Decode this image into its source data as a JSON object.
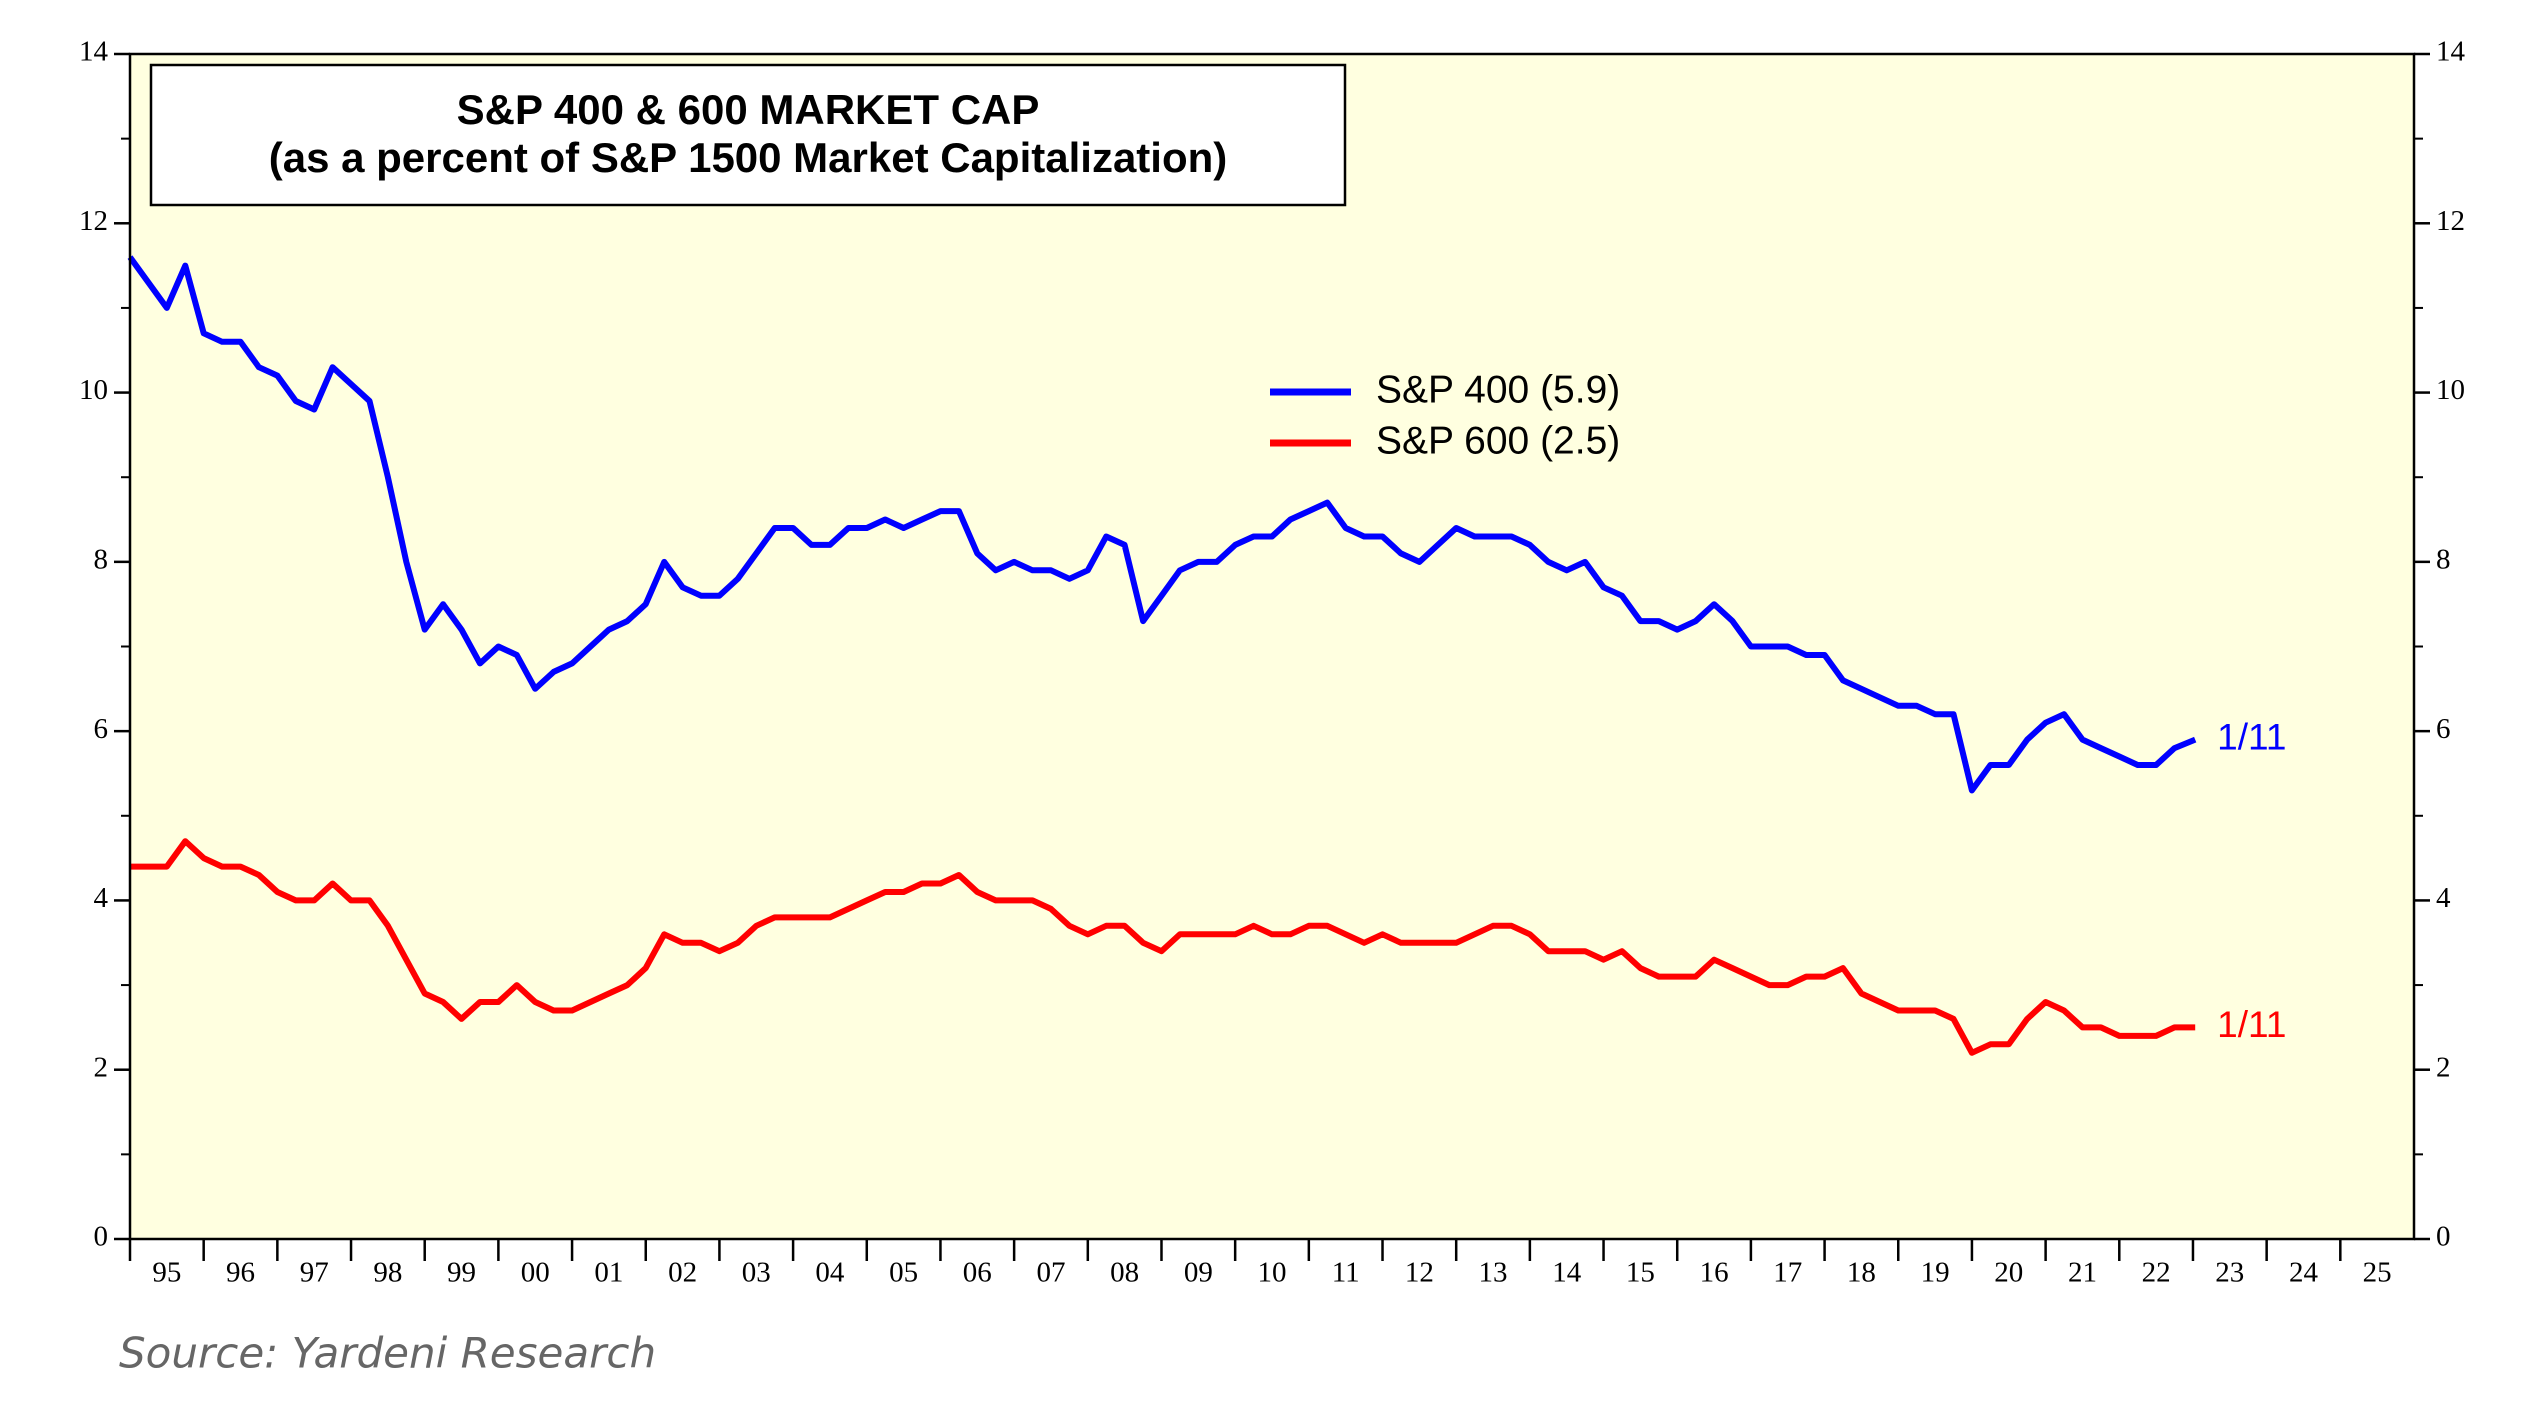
{
  "chart_data": {
    "type": "line",
    "title": "S&P 400 & 600 MARKET CAP",
    "subtitle": "(as a percent of S&P 1500 Market Capitalization)",
    "source": "Source: Yardeni Research",
    "x": [
      1995,
      1995.25,
      1995.5,
      1995.75,
      1996,
      1996.25,
      1996.5,
      1996.75,
      1997,
      1997.25,
      1997.5,
      1997.75,
      1998,
      1998.25,
      1998.5,
      1998.75,
      1999,
      1999.25,
      1999.5,
      1999.75,
      2000,
      2000.25,
      2000.5,
      2000.75,
      2001,
      2001.25,
      2001.5,
      2001.75,
      2002,
      2002.25,
      2002.5,
      2002.75,
      2003,
      2003.25,
      2003.5,
      2003.75,
      2004,
      2004.25,
      2004.5,
      2004.75,
      2005,
      2005.25,
      2005.5,
      2005.75,
      2006,
      2006.25,
      2006.5,
      2006.75,
      2007,
      2007.25,
      2007.5,
      2007.75,
      2008,
      2008.25,
      2008.5,
      2008.75,
      2009,
      2009.25,
      2009.5,
      2009.75,
      2010,
      2010.25,
      2010.5,
      2010.75,
      2011,
      2011.25,
      2011.5,
      2011.75,
      2012,
      2012.25,
      2012.5,
      2012.75,
      2013,
      2013.25,
      2013.5,
      2013.75,
      2014,
      2014.25,
      2014.5,
      2014.75,
      2015,
      2015.25,
      2015.5,
      2015.75,
      2016,
      2016.25,
      2016.5,
      2016.75,
      2017,
      2017.25,
      2017.5,
      2017.75,
      2018,
      2018.25,
      2018.5,
      2018.75,
      2019,
      2019.25,
      2019.5,
      2019.75,
      2020,
      2020.25,
      2020.5,
      2020.75,
      2021,
      2021.25,
      2021.5,
      2021.75,
      2022,
      2022.25,
      2022.5,
      2022.75,
      2023.03
    ],
    "series": [
      {
        "name": "S&P 400 (5.9)",
        "color": "#0000ff",
        "values": [
          11.6,
          11.3,
          11.0,
          11.5,
          10.7,
          10.6,
          10.6,
          10.3,
          10.2,
          9.9,
          9.8,
          10.3,
          10.1,
          9.9,
          9.0,
          8.0,
          7.2,
          7.5,
          7.2,
          6.8,
          7.0,
          6.9,
          6.5,
          6.7,
          6.8,
          7.0,
          7.2,
          7.3,
          7.5,
          8.0,
          7.7,
          7.6,
          7.6,
          7.8,
          8.1,
          8.4,
          8.4,
          8.2,
          8.2,
          8.4,
          8.4,
          8.5,
          8.4,
          8.5,
          8.6,
          8.6,
          8.1,
          7.9,
          8.0,
          7.9,
          7.9,
          7.8,
          7.9,
          8.3,
          8.2,
          7.3,
          7.6,
          7.9,
          8.0,
          8.0,
          8.2,
          8.3,
          8.3,
          8.5,
          8.6,
          8.7,
          8.4,
          8.3,
          8.3,
          8.1,
          8.0,
          8.2,
          8.4,
          8.3,
          8.3,
          8.3,
          8.2,
          8.0,
          7.9,
          8.0,
          7.7,
          7.6,
          7.3,
          7.3,
          7.2,
          7.3,
          7.5,
          7.3,
          7.0,
          7.0,
          7.0,
          6.9,
          6.9,
          6.6,
          6.5,
          6.4,
          6.3,
          6.3,
          6.2,
          6.2,
          5.3,
          5.6,
          5.6,
          5.9,
          6.1,
          6.2,
          5.9,
          5.8,
          5.7,
          5.6,
          5.6,
          5.8,
          5.9
        ]
      },
      {
        "name": "S&P 600 (2.5)",
        "color": "#ff0000",
        "values": [
          4.4,
          4.4,
          4.4,
          4.7,
          4.5,
          4.4,
          4.4,
          4.3,
          4.1,
          4.0,
          4.0,
          4.2,
          4.0,
          4.0,
          3.7,
          3.3,
          2.9,
          2.8,
          2.6,
          2.8,
          2.8,
          3.0,
          2.8,
          2.7,
          2.7,
          2.8,
          2.9,
          3.0,
          3.2,
          3.6,
          3.5,
          3.5,
          3.4,
          3.5,
          3.7,
          3.8,
          3.8,
          3.8,
          3.8,
          3.9,
          4.0,
          4.1,
          4.1,
          4.2,
          4.2,
          4.3,
          4.1,
          4.0,
          4.0,
          4.0,
          3.9,
          3.7,
          3.6,
          3.7,
          3.7,
          3.5,
          3.4,
          3.6,
          3.6,
          3.6,
          3.6,
          3.7,
          3.6,
          3.6,
          3.7,
          3.7,
          3.6,
          3.5,
          3.6,
          3.5,
          3.5,
          3.5,
          3.5,
          3.6,
          3.7,
          3.7,
          3.6,
          3.4,
          3.4,
          3.4,
          3.3,
          3.4,
          3.2,
          3.1,
          3.1,
          3.1,
          3.3,
          3.2,
          3.1,
          3.0,
          3.0,
          3.1,
          3.1,
          3.2,
          2.9,
          2.8,
          2.7,
          2.7,
          2.7,
          2.6,
          2.2,
          2.3,
          2.3,
          2.6,
          2.8,
          2.7,
          2.5,
          2.5,
          2.4,
          2.4,
          2.4,
          2.5,
          2.5
        ]
      }
    ],
    "annotations": [
      {
        "text": "1/11",
        "color": "#0000ff"
      },
      {
        "text": "1/11",
        "color": "#ff0000"
      }
    ],
    "xlim": [
      1995,
      2026
    ],
    "xticks": [
      {
        "value": 1995,
        "label": "95"
      },
      {
        "value": 1996,
        "label": "96"
      },
      {
        "value": 1997,
        "label": "97"
      },
      {
        "value": 1998,
        "label": "98"
      },
      {
        "value": 1999,
        "label": "99"
      },
      {
        "value": 2000,
        "label": "00"
      },
      {
        "value": 2001,
        "label": "01"
      },
      {
        "value": 2002,
        "label": "02"
      },
      {
        "value": 2003,
        "label": "03"
      },
      {
        "value": 2004,
        "label": "04"
      },
      {
        "value": 2005,
        "label": "05"
      },
      {
        "value": 2006,
        "label": "06"
      },
      {
        "value": 2007,
        "label": "07"
      },
      {
        "value": 2008,
        "label": "08"
      },
      {
        "value": 2009,
        "label": "09"
      },
      {
        "value": 2010,
        "label": "10"
      },
      {
        "value": 2011,
        "label": "11"
      },
      {
        "value": 2012,
        "label": "12"
      },
      {
        "value": 2013,
        "label": "13"
      },
      {
        "value": 2014,
        "label": "14"
      },
      {
        "value": 2015,
        "label": "15"
      },
      {
        "value": 2016,
        "label": "16"
      },
      {
        "value": 2017,
        "label": "17"
      },
      {
        "value": 2018,
        "label": "18"
      },
      {
        "value": 2019,
        "label": "19"
      },
      {
        "value": 2020,
        "label": "20"
      },
      {
        "value": 2021,
        "label": "21"
      },
      {
        "value": 2022,
        "label": "22"
      },
      {
        "value": 2023,
        "label": "23"
      },
      {
        "value": 2024,
        "label": "24"
      },
      {
        "value": 2025,
        "label": "25"
      }
    ],
    "ylim": [
      0,
      14
    ],
    "yticks": [
      0,
      2,
      4,
      6,
      8,
      10,
      12,
      14
    ],
    "y2lim": [
      0,
      14
    ],
    "y2ticks": [
      0,
      2,
      4,
      6,
      8,
      10,
      12,
      14
    ]
  }
}
